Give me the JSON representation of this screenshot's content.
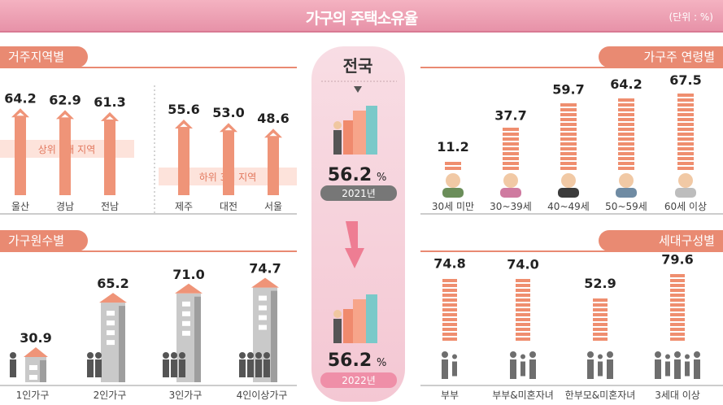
{
  "header": {
    "title": "가구의 주택소유율",
    "unit": "(단위 : %)"
  },
  "sections": {
    "region": "거주지역별",
    "age": "가구주 연령별",
    "members": "가구원수별",
    "type": "세대구성별"
  },
  "region_bands": {
    "top": "상위 3개 지역",
    "bottom": "하위 3개 지역"
  },
  "center": {
    "title": "전국",
    "v2021": "56.2",
    "y2021": "2021년",
    "v2022": "56.2",
    "y2022": "2022년",
    "pct": "%"
  },
  "colors": {
    "accent": "#e98a72",
    "pink": "#f4b2c1",
    "gray": "#9a9a9a"
  },
  "chart_data": [
    {
      "type": "bar",
      "title": "거주지역별",
      "categories": [
        "울산",
        "경남",
        "전남",
        "제주",
        "대전",
        "서울"
      ],
      "values": [
        64.2,
        62.9,
        61.3,
        55.6,
        53.0,
        48.6
      ],
      "labels": [
        "64.2",
        "62.9",
        "61.3",
        "55.6",
        "53.0",
        "48.6"
      ]
    },
    {
      "type": "bar",
      "title": "가구주 연령별",
      "categories": [
        "30세 미만",
        "30~39세",
        "40~49세",
        "50~59세",
        "60세 이상"
      ],
      "values": [
        11.2,
        37.7,
        59.7,
        64.2,
        67.5
      ],
      "labels": [
        "11.2",
        "37.7",
        "59.7",
        "64.2",
        "67.5"
      ]
    },
    {
      "type": "bar",
      "title": "가구원수별",
      "categories": [
        "1인가구",
        "2인가구",
        "3인가구",
        "4인이상가구"
      ],
      "values": [
        30.9,
        65.2,
        71.0,
        74.7
      ],
      "labels": [
        "30.9",
        "65.2",
        "71.0",
        "74.7"
      ]
    },
    {
      "type": "bar",
      "title": "세대구성별",
      "categories": [
        "부부",
        "부부&미혼자녀",
        "한부모&미혼자녀",
        "3세대 이상"
      ],
      "values": [
        74.8,
        74.0,
        52.9,
        79.6
      ],
      "labels": [
        "74.8",
        "74.0",
        "52.9",
        "79.6"
      ]
    }
  ]
}
